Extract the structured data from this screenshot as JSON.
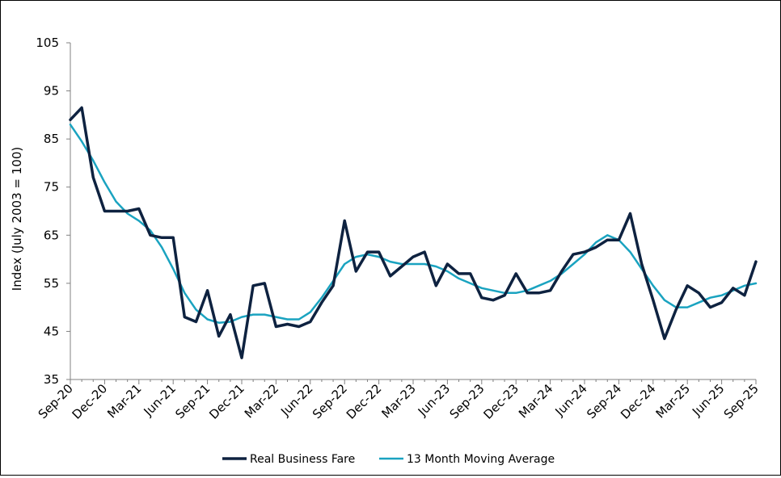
{
  "chart_data": {
    "type": "line",
    "title": "",
    "xlabel": "",
    "ylabel": "Index (July 2003 = 100)",
    "ylim": [
      35,
      105
    ],
    "yticks": [
      35,
      45,
      55,
      65,
      75,
      85,
      95,
      105
    ],
    "grid": false,
    "legend_position": "bottom",
    "x": [
      "Sep-20",
      "Oct-20",
      "Nov-20",
      "Dec-20",
      "Jan-21",
      "Feb-21",
      "Mar-21",
      "Apr-21",
      "May-21",
      "Jun-21",
      "Jul-21",
      "Aug-21",
      "Sep-21",
      "Oct-21",
      "Nov-21",
      "Dec-21",
      "Jan-22",
      "Feb-22",
      "Mar-22",
      "Apr-22",
      "May-22",
      "Jun-22",
      "Jul-22",
      "Aug-22",
      "Sep-22",
      "Oct-22",
      "Nov-22",
      "Dec-22",
      "Jan-23",
      "Feb-23",
      "Mar-23",
      "Apr-23",
      "May-23",
      "Jun-23",
      "Jul-23",
      "Aug-23",
      "Sep-23",
      "Oct-23",
      "Nov-23",
      "Dec-23",
      "Jan-24",
      "Feb-24",
      "Mar-24",
      "Apr-24",
      "May-24",
      "Jun-24",
      "Jul-24",
      "Aug-24",
      "Sep-24",
      "Oct-24",
      "Nov-24",
      "Dec-24",
      "Jan-25",
      "Feb-25",
      "Mar-25",
      "Apr-25",
      "May-25",
      "Jun-25",
      "Jul-25",
      "Aug-25",
      "Sep-25"
    ],
    "xtick_labels": [
      "Sep-20",
      "Dec-20",
      "Mar-21",
      "Jun-21",
      "Sep-21",
      "Dec-21",
      "Mar-22",
      "Jun-22",
      "Sep-22",
      "Dec-22",
      "Mar-23",
      "Jun-23",
      "Sep-23",
      "Dec-23",
      "Mar-24",
      "Jun-24",
      "Sep-24",
      "Dec-24",
      "Mar-25",
      "Jun-25",
      "Sep-25"
    ],
    "series": [
      {
        "name": "Real Business Fare",
        "color": "#0e2240",
        "values": [
          89,
          91.5,
          77,
          70,
          70,
          70,
          70.5,
          65,
          64.5,
          64.5,
          48,
          47,
          53.5,
          44,
          48.5,
          39.5,
          54.5,
          55,
          46,
          46.5,
          46,
          47,
          51,
          54.5,
          68,
          57.5,
          61.5,
          61.5,
          56.5,
          58.5,
          60.5,
          61.5,
          54.5,
          59,
          57,
          57,
          52,
          51.5,
          52.5,
          57,
          53,
          53,
          53.5,
          57.5,
          61,
          61.5,
          62.5,
          64,
          64,
          69.5,
          59,
          51.5,
          43.5,
          49.5,
          54.5,
          53,
          50,
          51,
          54,
          52.5,
          59.5
        ]
      },
      {
        "name": "13 Month Moving Average",
        "color": "#1aa3c0",
        "values": [
          88,
          84.5,
          80.5,
          76,
          72,
          69.5,
          68,
          66,
          62.5,
          58,
          53,
          49.5,
          47.5,
          46.8,
          47,
          48,
          48.5,
          48.5,
          48,
          47.5,
          47.5,
          49,
          52,
          55.5,
          59,
          60.5,
          61,
          60.5,
          59.5,
          59,
          59,
          59,
          58.5,
          57.5,
          56,
          55,
          54,
          53.5,
          53,
          53,
          53.5,
          54.5,
          55.5,
          57,
          59,
          61,
          63.5,
          65,
          64,
          61.5,
          58,
          54.5,
          51.5,
          50,
          50,
          51,
          52,
          52.5,
          53.5,
          54.5,
          55
        ]
      }
    ]
  }
}
